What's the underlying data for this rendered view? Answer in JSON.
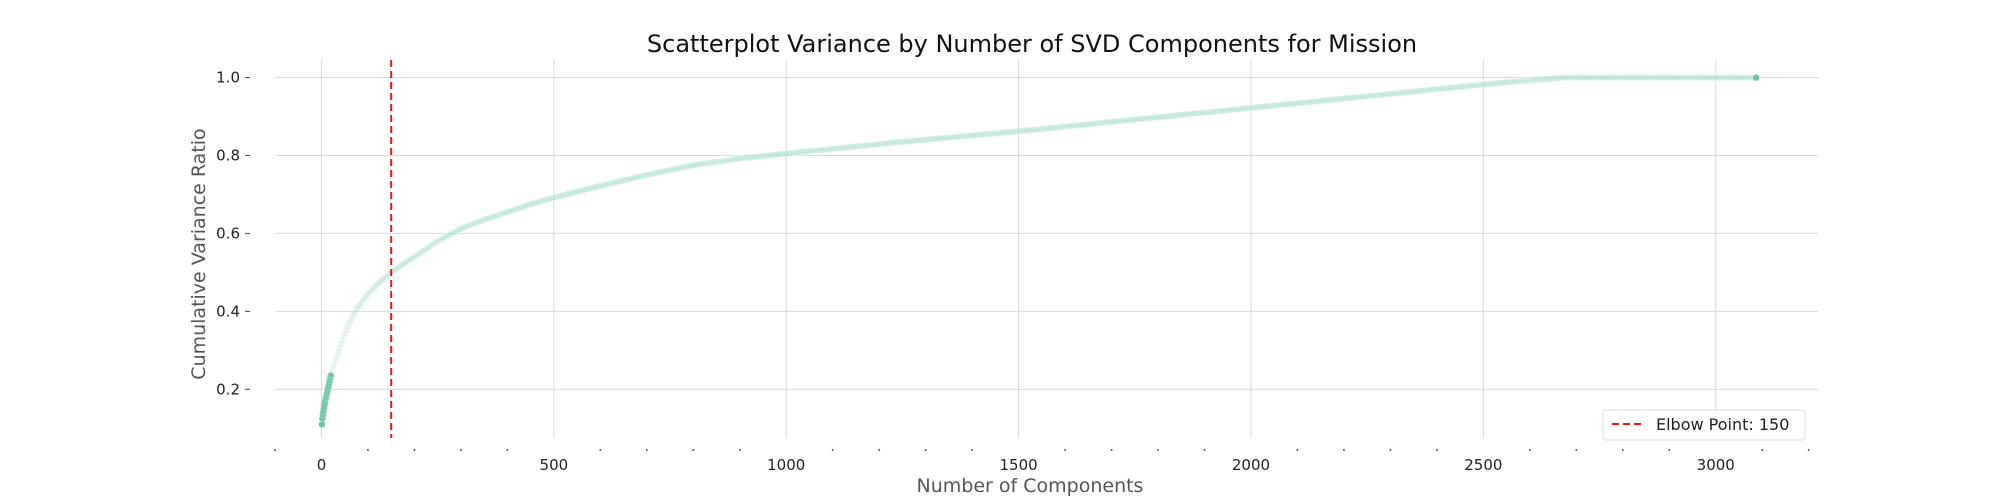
{
  "chart_data": {
    "type": "scatter",
    "title": "Scatterplot Variance by Number of SVD Components for Mission",
    "xlabel": "Number of Components",
    "ylabel": "Cumulative Variance Ratio",
    "xlim": [
      -100,
      3220
    ],
    "ylim": [
      0.075,
      1.045
    ],
    "xticks": [
      0,
      500,
      1000,
      1500,
      2000,
      2500,
      3000
    ],
    "xtick_labels": [
      "0",
      "500",
      "1000",
      "1500",
      "2000",
      "2500",
      "3000"
    ],
    "yticks": [
      0.2,
      0.4,
      0.6,
      0.8,
      1.0
    ],
    "ytick_labels": [
      "0.2",
      "0.4",
      "0.6",
      "0.8",
      "1.0"
    ],
    "grid": true,
    "legend_position": "bottom-right",
    "series": [
      {
        "marker_color": "#66c2a5",
        "total_components": 3087,
        "curve": [
          [
            1,
            0.11
          ],
          [
            2,
            0.125
          ],
          [
            3,
            0.135
          ],
          [
            5,
            0.15
          ],
          [
            8,
            0.17
          ],
          [
            12,
            0.19
          ],
          [
            20,
            0.235
          ],
          [
            30,
            0.275
          ],
          [
            40,
            0.31
          ],
          [
            50,
            0.34
          ],
          [
            60,
            0.37
          ],
          [
            75,
            0.405
          ],
          [
            100,
            0.445
          ],
          [
            125,
            0.475
          ],
          [
            150,
            0.5
          ],
          [
            175,
            0.52
          ],
          [
            200,
            0.54
          ],
          [
            250,
            0.58
          ],
          [
            300,
            0.612
          ],
          [
            350,
            0.635
          ],
          [
            400,
            0.655
          ],
          [
            450,
            0.675
          ],
          [
            500,
            0.692
          ],
          [
            600,
            0.722
          ],
          [
            700,
            0.75
          ],
          [
            800,
            0.775
          ],
          [
            900,
            0.792
          ],
          [
            1000,
            0.805
          ],
          [
            1250,
            0.835
          ],
          [
            1500,
            0.862
          ],
          [
            1750,
            0.892
          ],
          [
            2000,
            0.922
          ],
          [
            2250,
            0.952
          ],
          [
            2500,
            0.982
          ],
          [
            2600,
            0.993
          ],
          [
            2675,
            1.0
          ],
          [
            3087,
            1.0
          ]
        ]
      }
    ],
    "elbow": {
      "x": 150,
      "label": "Elbow Point: 150",
      "color": "#e31a1c",
      "linestyle": "dashed"
    }
  }
}
